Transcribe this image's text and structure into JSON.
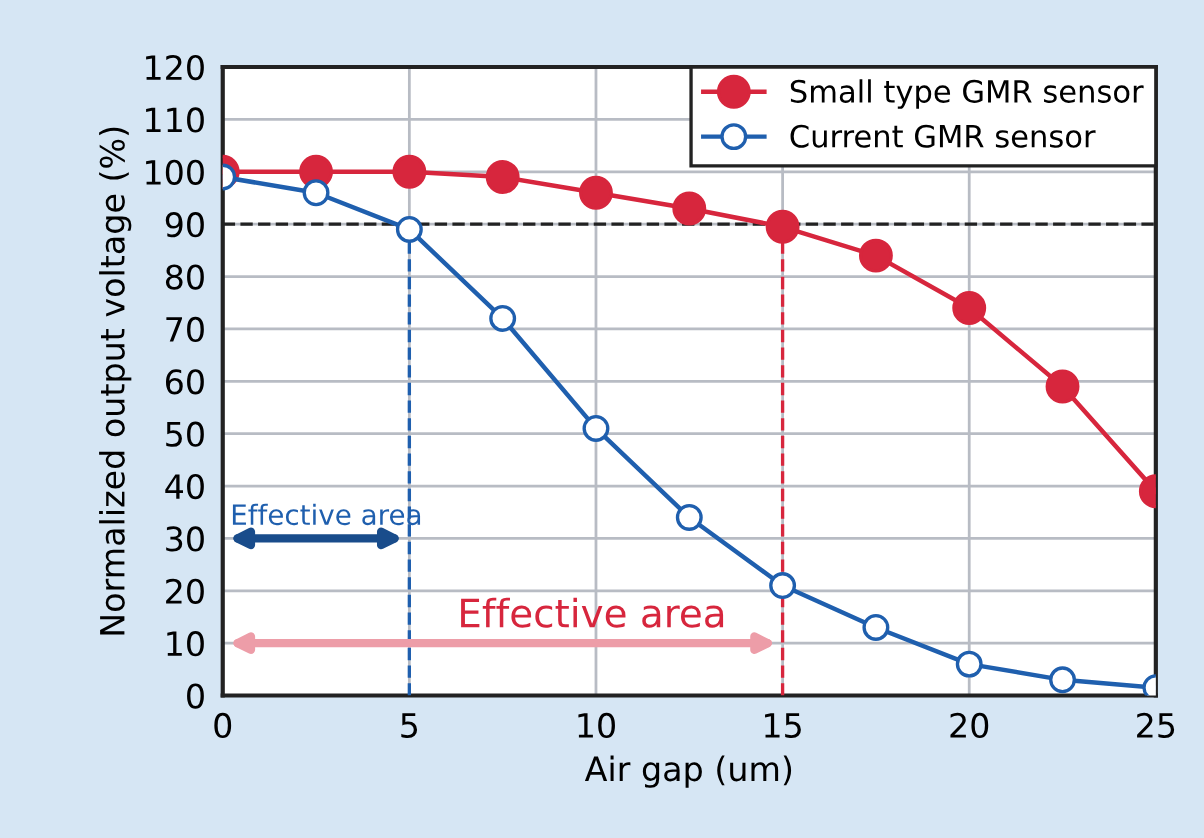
{
  "chart_data": {
    "type": "line",
    "xlabel": "Air gap (um)",
    "ylabel": "Normalized output voltage (%)",
    "x": [
      0,
      2.5,
      5,
      7.5,
      10,
      12.5,
      15,
      17.5,
      20,
      22.5,
      25
    ],
    "series": [
      {
        "name": "Small type GMR sensor",
        "color": "#d7263d",
        "values": [
          100,
          100,
          100,
          99,
          96,
          93,
          89.5,
          84,
          74,
          59,
          39
        ]
      },
      {
        "name": "Current GMR sensor",
        "color": "#1f5fae",
        "values": [
          99,
          96,
          89,
          72,
          51,
          34,
          21,
          13,
          6,
          3,
          1.5
        ]
      }
    ],
    "marker": "circle",
    "line_style": "solid",
    "xlim": [
      0,
      25
    ],
    "xticks": [
      0,
      5,
      10,
      15,
      20,
      25
    ],
    "ylim": [
      0,
      120
    ],
    "yticks": [
      0,
      10,
      20,
      30,
      40,
      50,
      60,
      70,
      80,
      90,
      100,
      110,
      120
    ],
    "grid": true,
    "legend": "top right",
    "ref_lines": [
      {
        "axis": "y",
        "value": 90,
        "color": "#222222",
        "line_style": "dashed"
      },
      {
        "axis": "x",
        "value": 5,
        "color": "#1f5fae",
        "line_style": "dashed"
      },
      {
        "axis": "x",
        "value": 15,
        "color": "#d7263d",
        "line_style": "dashed"
      }
    ],
    "annotations": [
      {
        "text": "Effective area",
        "x": 5,
        "y": 30
      },
      {
        "text": "Effective area",
        "x": 15,
        "y": 10
      }
    ]
  }
}
